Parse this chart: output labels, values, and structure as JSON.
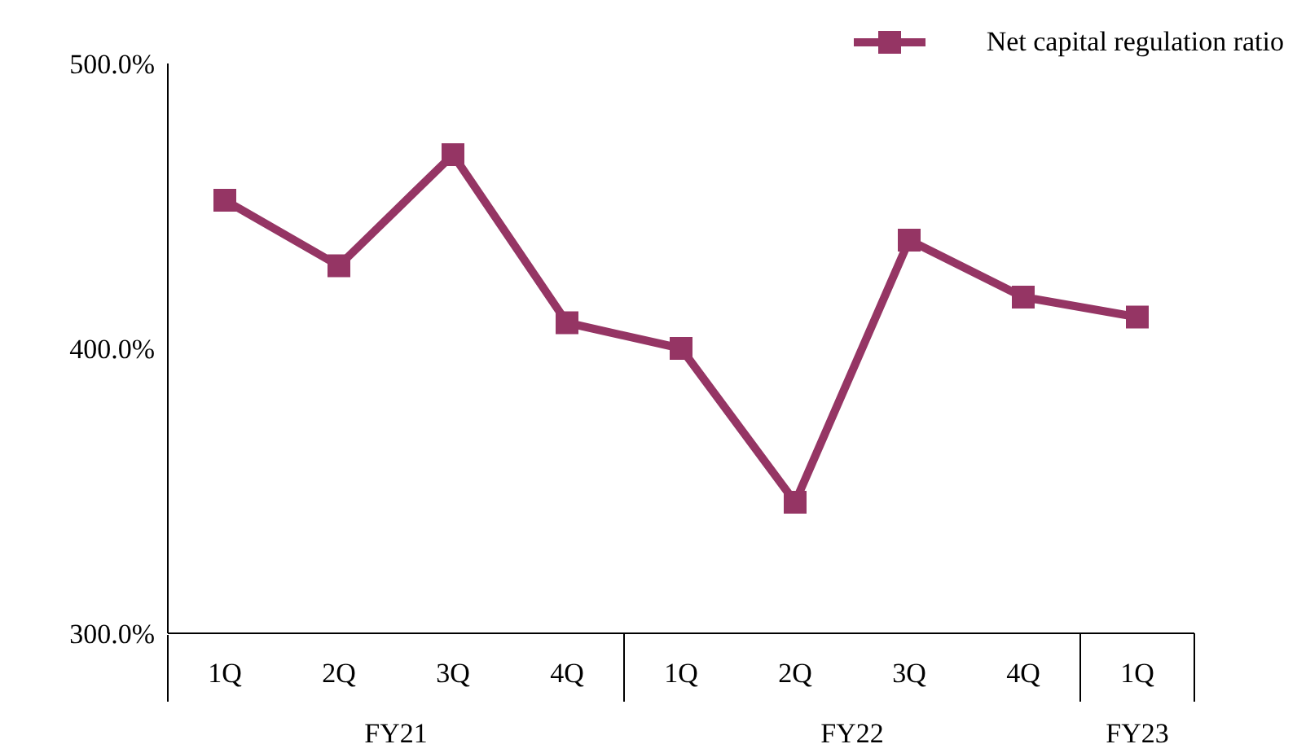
{
  "chart_data": {
    "type": "line",
    "categories": [
      "1Q",
      "2Q",
      "3Q",
      "4Q",
      "1Q",
      "2Q",
      "3Q",
      "4Q",
      "1Q"
    ],
    "series": [
      {
        "name": "Net capital regulation ratio",
        "color": "#953564",
        "values": [
          452,
          429,
          468,
          409,
          400,
          346,
          438,
          418,
          411
        ]
      }
    ],
    "ylim": [
      300,
      500
    ],
    "yticks": [
      {
        "value": 300,
        "label": "300.0%"
      },
      {
        "value": 400,
        "label": "400.0%"
      },
      {
        "value": 500,
        "label": "500.0%"
      }
    ],
    "annotations": [
      "FY21",
      "FY22",
      "FY23"
    ],
    "marker": "square",
    "legend": "top right",
    "grid": false
  }
}
